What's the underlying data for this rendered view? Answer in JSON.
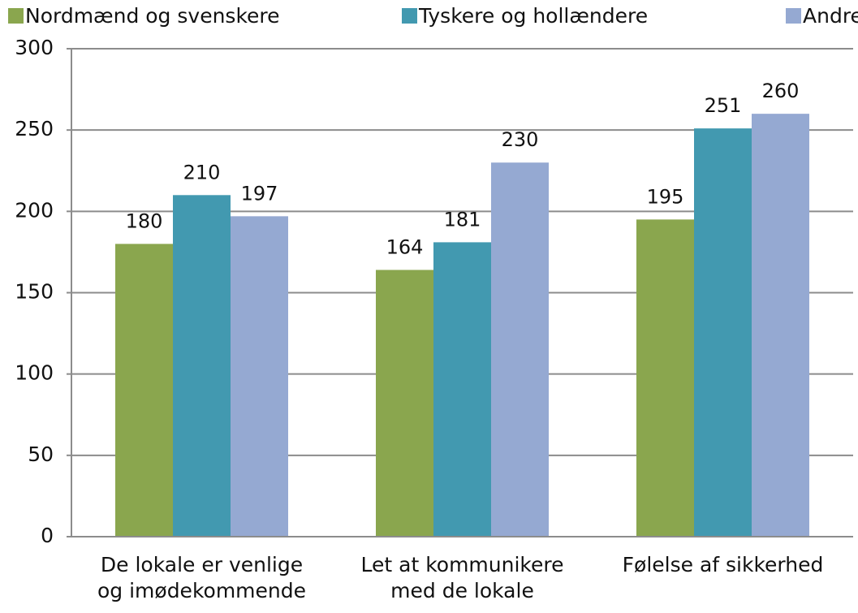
{
  "chart_data": {
    "type": "bar",
    "categories": [
      [
        "De lokale er venlige",
        "og imødekommende"
      ],
      [
        "Let at kommunikere",
        "med de lokale"
      ],
      [
        "Følelse af sikkerhed"
      ]
    ],
    "series": [
      {
        "name": "Nordmænd og svenskere",
        "color": "#8aa64e",
        "values": [
          180,
          164,
          195
        ]
      },
      {
        "name": "Tyskere og hollændere",
        "color": "#4299b0",
        "values": [
          210,
          181,
          251
        ]
      },
      {
        "name": "Andre",
        "color": "#95a9d2",
        "values": [
          197,
          230,
          260
        ]
      }
    ],
    "ylim": [
      0,
      300
    ],
    "yticks": [
      0,
      50,
      100,
      150,
      200,
      250,
      300
    ],
    "grid": true,
    "legend": "top"
  }
}
